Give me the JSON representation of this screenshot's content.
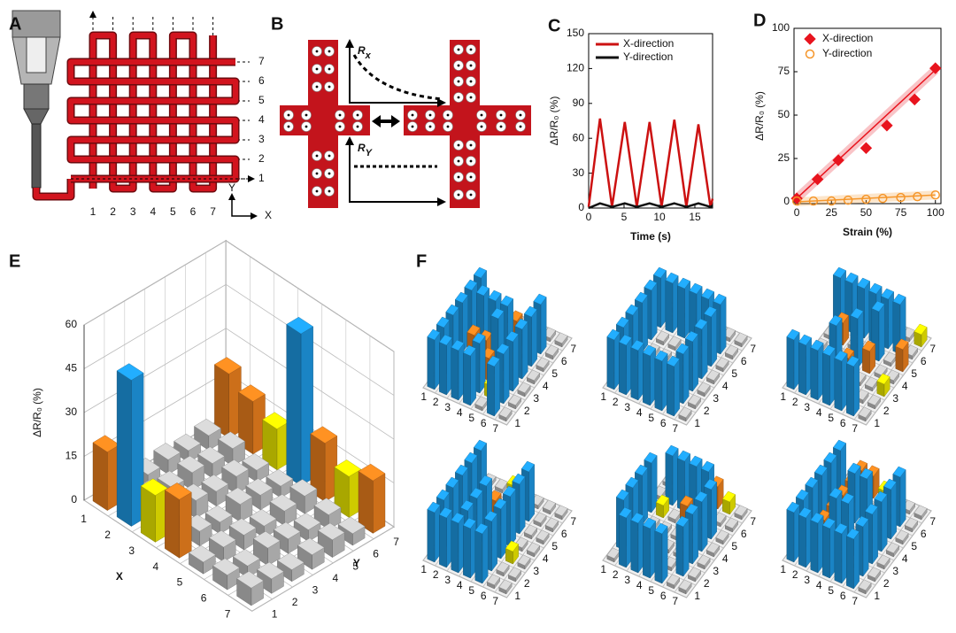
{
  "diagrams": {
    "a": {
      "panel": "A",
      "rows": [
        1,
        2,
        3,
        4,
        5,
        6,
        7
      ],
      "columns": [
        1,
        2,
        3,
        4,
        5,
        6,
        7
      ],
      "axis_y": "Y",
      "axis_x": "X"
    },
    "b": {
      "panel": "B",
      "rx": {
        "main": "R",
        "sub": "x"
      },
      "ry": {
        "main": "R",
        "sub": "Y"
      }
    }
  },
  "bar_colors": [
    {
      "min": 30,
      "color": "#1e9be8"
    },
    {
      "min": 17,
      "color": "#f0821e"
    },
    {
      "min": 9,
      "color": "#f2ee00"
    },
    {
      "min": 0,
      "color": "#c4c4c4"
    }
  ],
  "chart_data": [
    {
      "panel": "C",
      "type": "line",
      "ylabel": "ΔR/R₀ (%)",
      "xlabel": "Time (s)",
      "xlim": [
        0,
        17.5
      ],
      "ylim": [
        0,
        150
      ],
      "xticks": [
        0,
        5,
        10,
        15
      ],
      "yticks": [
        0,
        30,
        60,
        90,
        120,
        150
      ],
      "legend": "upper left",
      "x": [
        0,
        1.6,
        3.3,
        5.1,
        6.8,
        8.6,
        10.3,
        12.1,
        13.8,
        15.5,
        17.2,
        17.5
      ],
      "series": [
        {
          "name": "X-direction",
          "color": "#cc1111",
          "values": [
            1,
            77,
            1,
            74,
            1,
            74,
            1,
            76,
            1,
            72,
            1,
            8
          ]
        },
        {
          "name": "Y-direction",
          "color": "#111111",
          "values": [
            0,
            4,
            1,
            4,
            1,
            4,
            1,
            4,
            1,
            4,
            1,
            2
          ]
        }
      ]
    },
    {
      "panel": "D",
      "type": "scatter",
      "ylabel": "ΔR/R₀ (%)",
      "xlabel": "Strain (%)",
      "xlim": [
        -2,
        104
      ],
      "ylim": [
        -1,
        100
      ],
      "xticks": [
        0,
        25,
        50,
        75,
        100
      ],
      "yticks": [
        0,
        25,
        50,
        75,
        100
      ],
      "legend": "upper left",
      "series": [
        {
          "name": "X-direction",
          "color": "#e8141e",
          "marker": "diamond",
          "x": [
            0,
            15,
            30,
            50,
            65,
            85,
            100
          ],
          "values": [
            2,
            13,
            24,
            31,
            44,
            59,
            77
          ],
          "fit": {
            "x": [
              0,
              100
            ],
            "values": [
              2,
              76
            ]
          }
        },
        {
          "name": "Y-direction",
          "color": "#f5962a",
          "marker": "circle",
          "x": [
            0,
            12,
            25,
            37,
            50,
            62,
            75,
            87,
            100
          ],
          "values": [
            0.5,
            0.5,
            0.5,
            1,
            1.5,
            2,
            2.5,
            3,
            4
          ],
          "fit": {
            "x": [
              0,
              100
            ],
            "values": [
              0,
              4
            ]
          }
        }
      ]
    },
    {
      "panel": "E",
      "type": "bar3d",
      "zlabel": "ΔR/R₀ (%)",
      "xlabel": "X",
      "ylabel": "Y",
      "categories_x": [
        1,
        2,
        3,
        4,
        5,
        6,
        7
      ],
      "categories_y": [
        1,
        2,
        3,
        4,
        5,
        6,
        7
      ],
      "zlim": [
        0,
        60
      ],
      "zticks": [
        0,
        15,
        30,
        45,
        60
      ],
      "values": [
        [
          20,
          5,
          4,
          5,
          4,
          5,
          22
        ],
        [
          50,
          6,
          5,
          6,
          5,
          6,
          18
        ],
        [
          16,
          4,
          6,
          5,
          6,
          4,
          14
        ],
        [
          20,
          5,
          4,
          6,
          5,
          4,
          52
        ],
        [
          4,
          5,
          5,
          4,
          5,
          6,
          20
        ],
        [
          5,
          4,
          6,
          5,
          4,
          5,
          14
        ],
        [
          6,
          5,
          4,
          5,
          6,
          4,
          18
        ]
      ]
    },
    {
      "panel": "F",
      "type": "bar3d",
      "categories_x": [
        1,
        2,
        3,
        4,
        5,
        6,
        7
      ],
      "categories_y": [
        1,
        2,
        3,
        4,
        5,
        6,
        7
      ],
      "zlim": [
        0,
        60
      ],
      "values": [
        [
          40,
          40,
          40,
          40,
          40,
          40,
          3
        ],
        [
          40,
          18,
          3,
          18,
          40,
          10,
          3
        ],
        [
          40,
          18,
          3,
          18,
          40,
          3,
          3
        ],
        [
          40,
          40,
          18,
          40,
          40,
          18,
          3
        ],
        [
          3,
          10,
          3,
          10,
          3,
          10,
          3
        ],
        [
          40,
          40,
          40,
          40,
          40,
          40,
          3
        ],
        [
          3,
          3,
          3,
          3,
          3,
          3,
          3
        ]
      ]
    },
    {
      "type": "bar3d",
      "categories_x": [
        1,
        2,
        3,
        4,
        5,
        6,
        7
      ],
      "categories_y": [
        1,
        2,
        3,
        4,
        5,
        6,
        7
      ],
      "zlim": [
        0,
        60
      ],
      "values": [
        [
          40,
          40,
          40,
          40,
          40,
          40,
          3
        ],
        [
          40,
          10,
          3,
          3,
          3,
          40,
          3
        ],
        [
          40,
          3,
          3,
          3,
          3,
          40,
          3
        ],
        [
          40,
          18,
          3,
          3,
          3,
          40,
          10
        ],
        [
          40,
          3,
          3,
          3,
          3,
          40,
          3
        ],
        [
          40,
          40,
          40,
          40,
          40,
          40,
          3
        ],
        [
          3,
          3,
          3,
          3,
          3,
          3,
          3
        ]
      ]
    },
    {
      "type": "bar3d",
      "categories_x": [
        1,
        2,
        3,
        4,
        5,
        6,
        7
      ],
      "categories_y": [
        1,
        2,
        3,
        4,
        5,
        6,
        7
      ],
      "zlim": [
        0,
        60
      ],
      "values": [
        [
          40,
          3,
          3,
          3,
          3,
          40,
          3
        ],
        [
          40,
          18,
          3,
          3,
          18,
          40,
          3
        ],
        [
          40,
          3,
          40,
          3,
          3,
          40,
          10
        ],
        [
          40,
          3,
          18,
          40,
          3,
          40,
          3
        ],
        [
          40,
          10,
          3,
          18,
          40,
          40,
          18
        ],
        [
          40,
          3,
          3,
          3,
          3,
          40,
          3
        ],
        [
          3,
          3,
          10,
          3,
          18,
          3,
          10
        ]
      ]
    },
    {
      "type": "bar3d",
      "categories_x": [
        1,
        2,
        3,
        4,
        5,
        6,
        7
      ],
      "categories_y": [
        1,
        2,
        3,
        4,
        5,
        6,
        7
      ],
      "zlim": [
        0,
        60
      ],
      "values": [
        [
          40,
          40,
          40,
          40,
          40,
          40,
          3
        ],
        [
          40,
          18,
          18,
          3,
          3,
          3,
          3
        ],
        [
          40,
          40,
          40,
          40,
          18,
          3,
          10
        ],
        [
          40,
          10,
          3,
          3,
          18,
          3,
          3
        ],
        [
          40,
          40,
          40,
          40,
          40,
          40,
          3
        ],
        [
          3,
          3,
          10,
          3,
          3,
          3,
          3
        ],
        [
          3,
          3,
          3,
          3,
          3,
          3,
          3
        ]
      ]
    },
    {
      "type": "bar3d",
      "categories_x": [
        1,
        2,
        3,
        4,
        5,
        6,
        7
      ],
      "categories_y": [
        1,
        2,
        3,
        4,
        5,
        6,
        7
      ],
      "zlim": [
        0,
        60
      ],
      "values": [
        [
          3,
          40,
          40,
          40,
          40,
          3,
          3
        ],
        [
          40,
          10,
          3,
          3,
          10,
          40,
          3
        ],
        [
          40,
          3,
          3,
          3,
          3,
          40,
          3
        ],
        [
          40,
          18,
          3,
          3,
          18,
          40,
          10
        ],
        [
          40,
          3,
          3,
          3,
          3,
          40,
          18
        ],
        [
          3,
          40,
          40,
          40,
          40,
          3,
          10
        ],
        [
          3,
          3,
          3,
          3,
          3,
          3,
          3
        ]
      ]
    },
    {
      "type": "bar3d",
      "categories_x": [
        1,
        2,
        3,
        4,
        5,
        6,
        7
      ],
      "categories_y": [
        1,
        2,
        3,
        4,
        5,
        6,
        7
      ],
      "zlim": [
        0,
        60
      ],
      "values": [
        [
          40,
          40,
          40,
          40,
          40,
          40,
          3
        ],
        [
          40,
          18,
          18,
          18,
          18,
          18,
          18
        ],
        [
          40,
          10,
          40,
          10,
          40,
          10,
          18
        ],
        [
          40,
          3,
          40,
          3,
          40,
          3,
          10
        ],
        [
          40,
          3,
          18,
          3,
          18,
          3,
          3
        ],
        [
          40,
          40,
          40,
          40,
          40,
          40,
          3
        ],
        [
          3,
          3,
          3,
          3,
          3,
          3,
          3
        ]
      ]
    }
  ]
}
